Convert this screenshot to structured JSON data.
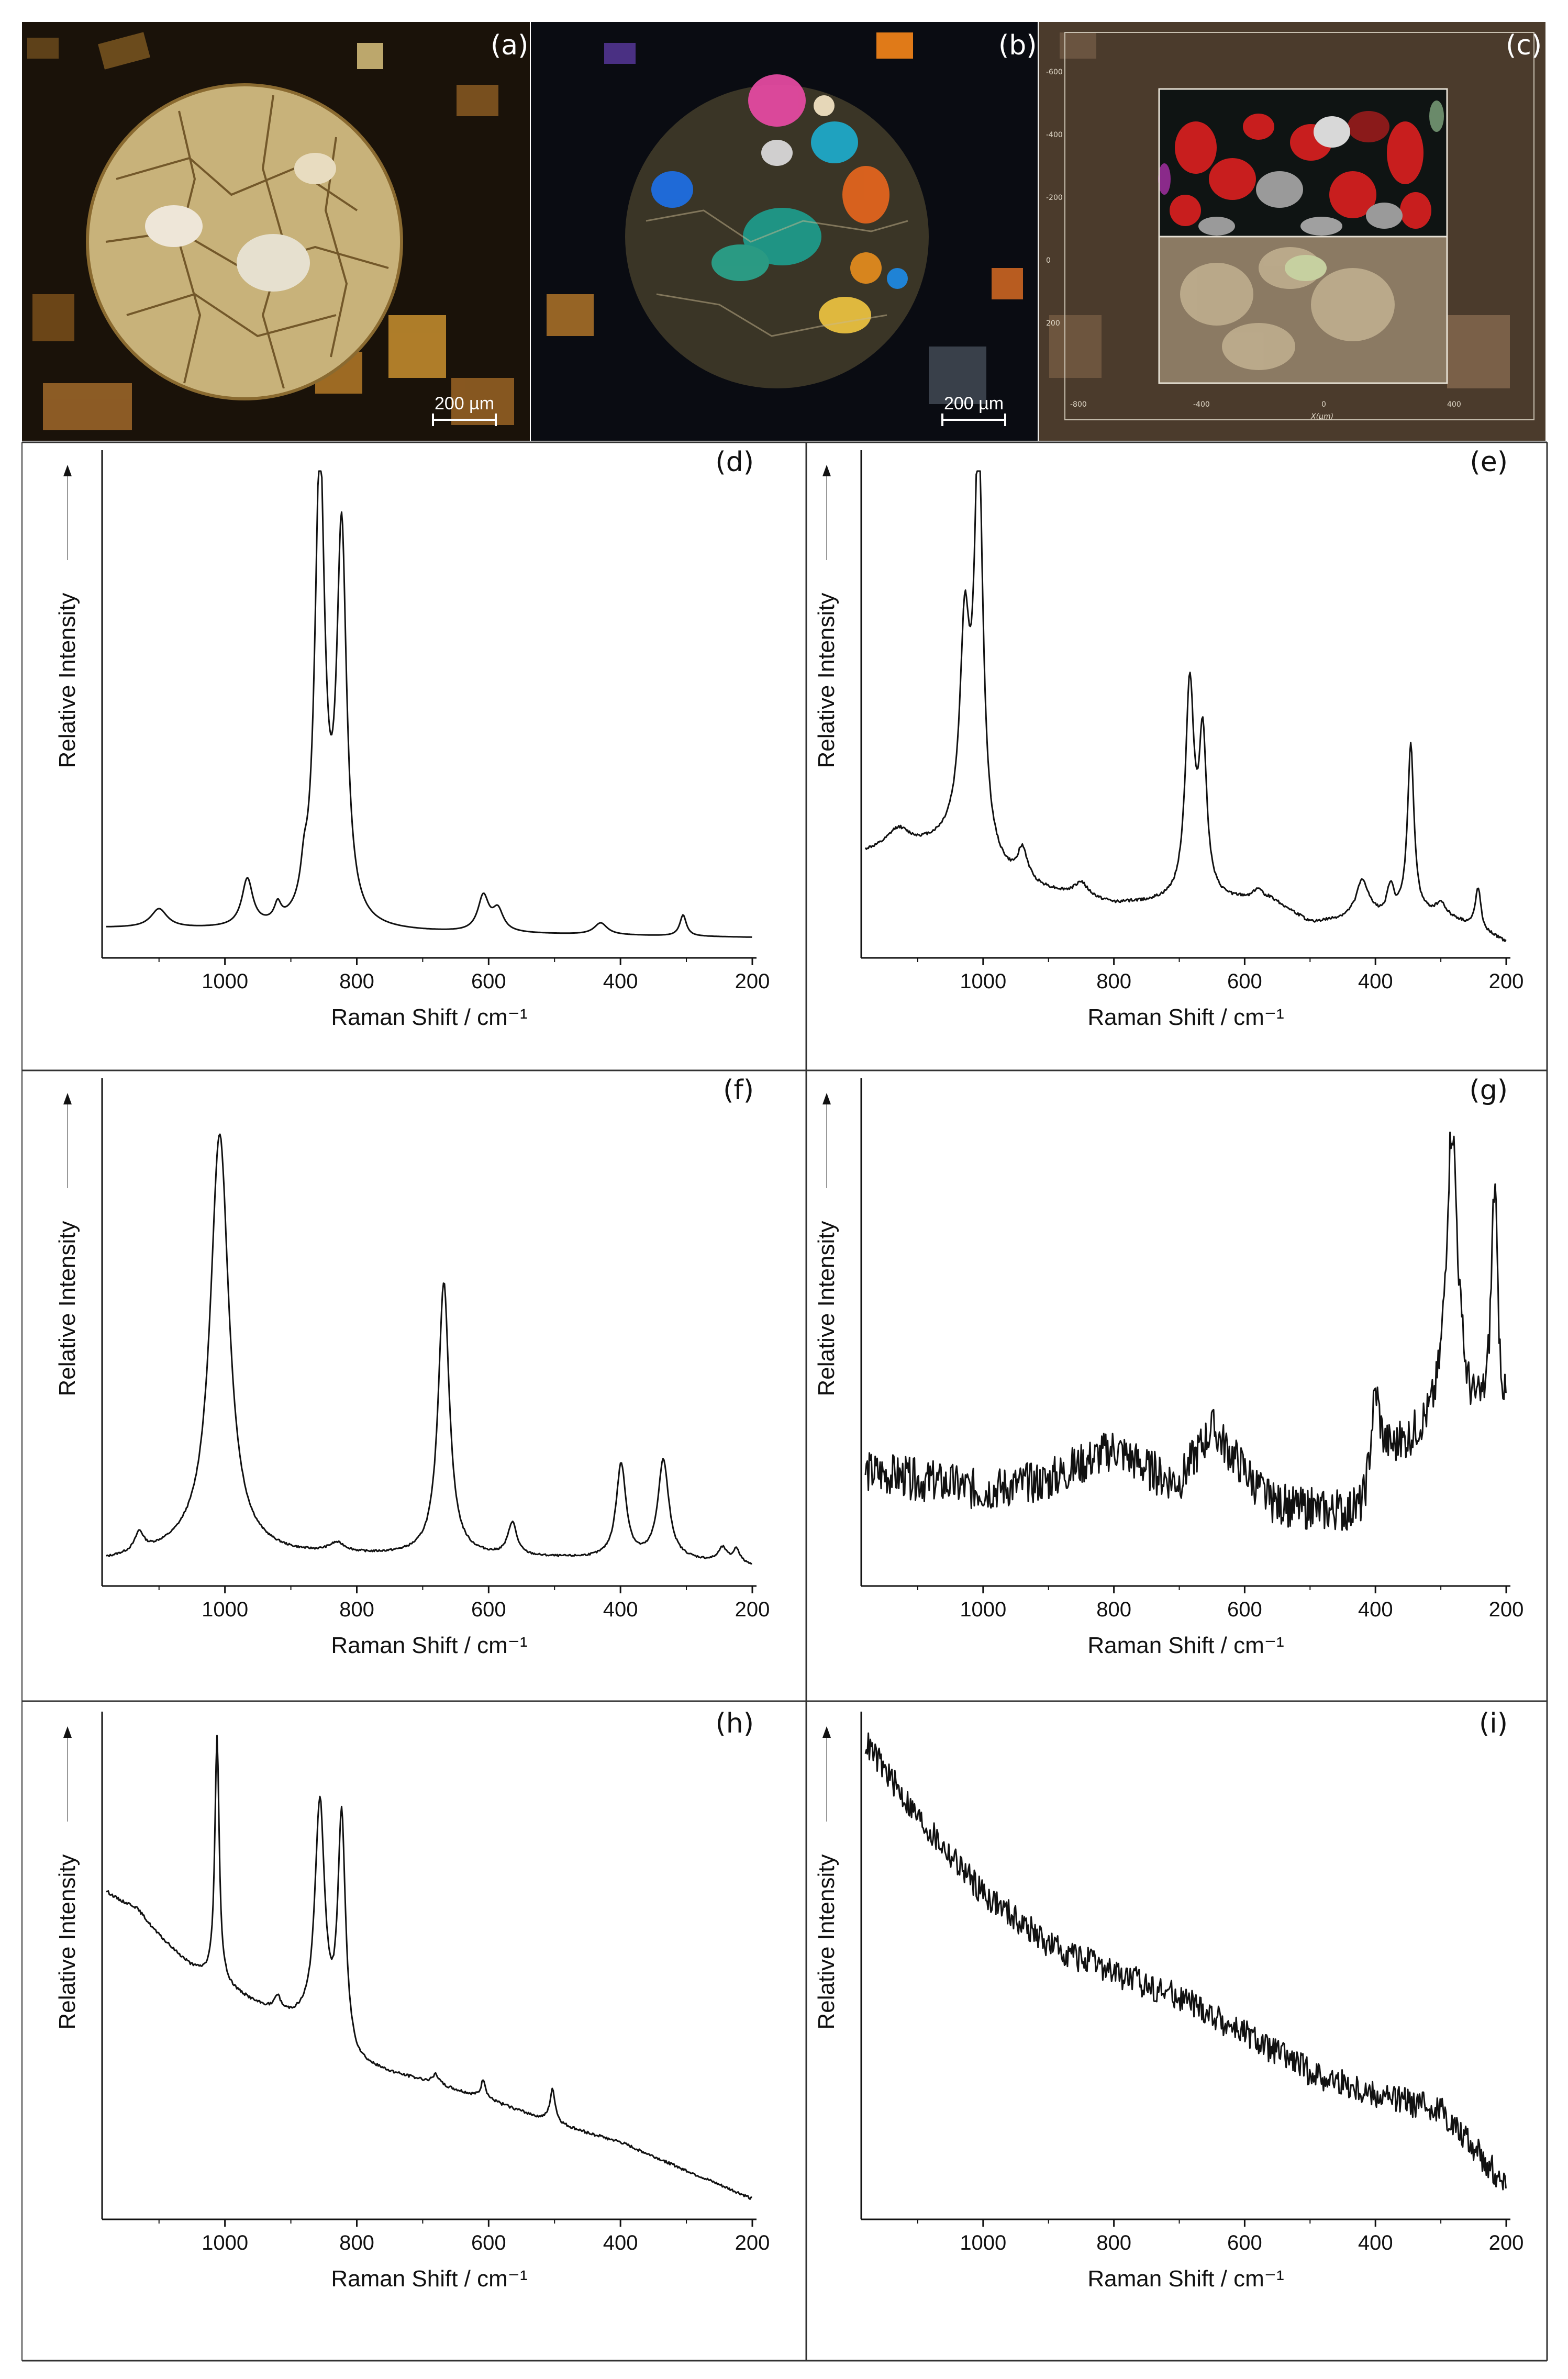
{
  "micrographs": [
    {
      "panel": "(a)",
      "scale_bar": "200 µm",
      "view": "plane-polarized light"
    },
    {
      "panel": "(b)",
      "scale_bar": "200 µm",
      "view": "cross-polarized light"
    },
    {
      "panel": "(c)",
      "x_axis_label": "X(µm)",
      "x_ticks": [
        "-800",
        "-400",
        "0",
        "400"
      ],
      "y_ticks": [
        "-600",
        "-400",
        "-200",
        "0",
        "200"
      ]
    }
  ],
  "colors": {
    "frame": "#333333",
    "trace": "#111111",
    "micro_bg": "#1a1209",
    "grain_light": "#d8c89a",
    "grain_orange": "#c8871e",
    "map_red": "#c81e1e",
    "map_gray": "#9a9a9a"
  },
  "chart_data": [
    {
      "panel": "(d)",
      "type": "line",
      "xlabel": "Raman Shift / cm⁻¹",
      "ylabel": "Relative Intensity",
      "xlim": [
        1180,
        200
      ],
      "ylim": [
        0,
        1
      ],
      "x_ticks": [
        "1000",
        "800",
        "600",
        "400",
        "200"
      ],
      "baseline": {
        "points": [
          [
            1180,
            0.03
          ],
          [
            200,
            0.01
          ]
        ]
      },
      "noise": 0.0,
      "seed": 11,
      "peaks": [
        [
          1100,
          0.04,
          15
        ],
        [
          966,
          0.1,
          10
        ],
        [
          920,
          0.035,
          6
        ],
        [
          880,
          0.06,
          6
        ],
        [
          856,
          0.99,
          9
        ],
        [
          823,
          0.82,
          9
        ],
        [
          608,
          0.075,
          10
        ],
        [
          586,
          0.045,
          10
        ],
        [
          430,
          0.025,
          12
        ],
        [
          305,
          0.045,
          6
        ]
      ]
    },
    {
      "panel": "(e)",
      "type": "line",
      "xlabel": "Raman Shift / cm⁻¹",
      "ylabel": "Relative Intensity",
      "xlim": [
        1180,
        200
      ],
      "ylim": [
        0,
        1
      ],
      "x_ticks": [
        "1000",
        "800",
        "600",
        "400",
        "200"
      ],
      "baseline": {
        "points": [
          [
            1180,
            0.19
          ],
          [
            1050,
            0.21
          ],
          [
            950,
            0.12
          ],
          [
            800,
            0.08
          ],
          [
            560,
            0.09
          ],
          [
            500,
            0.04
          ],
          [
            300,
            0.06
          ],
          [
            200,
            0.0
          ]
        ]
      },
      "noise": 0.003,
      "seed": 12,
      "peaks": [
        [
          1130,
          0.04,
          20
        ],
        [
          1028,
          0.44,
          9
        ],
        [
          1007,
          0.86,
          8
        ],
        [
          940,
          0.07,
          10
        ],
        [
          850,
          0.03,
          12
        ],
        [
          684,
          0.45,
          8
        ],
        [
          664,
          0.33,
          7
        ],
        [
          580,
          0.02,
          8
        ],
        [
          420,
          0.08,
          12
        ],
        [
          377,
          0.06,
          6
        ],
        [
          346,
          0.36,
          6
        ],
        [
          300,
          0.02,
          8
        ],
        [
          243,
          0.09,
          5
        ]
      ]
    },
    {
      "panel": "(f)",
      "type": "line",
      "xlabel": "Raman Shift / cm⁻¹",
      "ylabel": "Relative Intensity",
      "xlim": [
        1180,
        200
      ],
      "ylim": [
        0,
        1
      ],
      "x_ticks": [
        "1000",
        "800",
        "600",
        "400",
        "200"
      ],
      "baseline": {
        "points": [
          [
            1180,
            0.02
          ],
          [
            1060,
            0.04
          ],
          [
            900,
            0.03
          ],
          [
            700,
            0.03
          ],
          [
            300,
            0.02
          ],
          [
            200,
            0.01
          ]
        ]
      },
      "noise": 0.002,
      "seed": 13,
      "peaks": [
        [
          1130,
          0.04,
          8
        ],
        [
          1008,
          0.89,
          17
        ],
        [
          830,
          0.02,
          15
        ],
        [
          668,
          0.58,
          10
        ],
        [
          564,
          0.07,
          8
        ],
        [
          399,
          0.2,
          9
        ],
        [
          335,
          0.21,
          10
        ],
        [
          245,
          0.03,
          8
        ],
        [
          224,
          0.03,
          6
        ]
      ]
    },
    {
      "panel": "(g)",
      "type": "line",
      "xlabel": "Raman Shift / cm⁻¹",
      "ylabel": "Relative Intensity",
      "xlim": [
        1180,
        200
      ],
      "ylim": [
        0,
        1
      ],
      "x_ticks": [
        "1000",
        "800",
        "600",
        "400",
        "200"
      ],
      "baseline": {
        "points": [
          [
            1180,
            0.21
          ],
          [
            1000,
            0.17
          ],
          [
            900,
            0.19
          ],
          [
            800,
            0.26
          ],
          [
            730,
            0.2
          ],
          [
            700,
            0.19
          ],
          [
            650,
            0.3
          ],
          [
            610,
            0.23
          ],
          [
            560,
            0.14
          ],
          [
            420,
            0.11
          ],
          [
            380,
            0.23
          ],
          [
            330,
            0.28
          ],
          [
            200,
            0.3
          ]
        ]
      },
      "noise": 0.045,
      "seed": 14,
      "peaks": [
        [
          400,
          0.2,
          9
        ],
        [
          283,
          0.65,
          11
        ],
        [
          218,
          0.5,
          6
        ]
      ]
    },
    {
      "panel": "(h)",
      "type": "line",
      "xlabel": "Raman Shift / cm⁻¹",
      "ylabel": "Relative Intensity",
      "xlim": [
        1180,
        200
      ],
      "ylim": [
        0,
        1
      ],
      "x_ticks": [
        "1000",
        "800",
        "600",
        "400",
        "200"
      ],
      "baseline": {
        "points": [
          [
            1180,
            0.66
          ],
          [
            1120,
            0.59
          ],
          [
            1050,
            0.5
          ],
          [
            950,
            0.42
          ],
          [
            880,
            0.38
          ],
          [
            800,
            0.29
          ],
          [
            700,
            0.26
          ],
          [
            600,
            0.22
          ],
          [
            500,
            0.17
          ],
          [
            400,
            0.13
          ],
          [
            300,
            0.07
          ],
          [
            200,
            0.01
          ]
        ]
      },
      "noise": 0.003,
      "seed": 15,
      "peaks": [
        [
          1135,
          0.02,
          20
        ],
        [
          1012,
          0.52,
          4
        ],
        [
          920,
          0.03,
          5
        ],
        [
          856,
          0.49,
          9
        ],
        [
          823,
          0.49,
          7
        ],
        [
          680,
          0.02,
          6
        ],
        [
          608,
          0.04,
          4
        ],
        [
          503,
          0.07,
          5
        ]
      ]
    },
    {
      "panel": "(i)",
      "type": "line",
      "xlabel": "Raman Shift / cm⁻¹",
      "ylabel": "Relative Intensity",
      "xlim": [
        1180,
        200
      ],
      "ylim": [
        0,
        1
      ],
      "x_ticks": [
        "1000",
        "800",
        "600",
        "400",
        "200"
      ],
      "baseline": {
        "points": [
          [
            1180,
            0.98
          ],
          [
            1100,
            0.82
          ],
          [
            1000,
            0.66
          ],
          [
            900,
            0.55
          ],
          [
            800,
            0.49
          ],
          [
            700,
            0.44
          ],
          [
            600,
            0.36
          ],
          [
            500,
            0.28
          ],
          [
            400,
            0.23
          ],
          [
            300,
            0.2
          ],
          [
            250,
            0.12
          ],
          [
            200,
            0.04
          ]
        ]
      },
      "noise": 0.03,
      "seed": 16,
      "peaks": []
    }
  ]
}
